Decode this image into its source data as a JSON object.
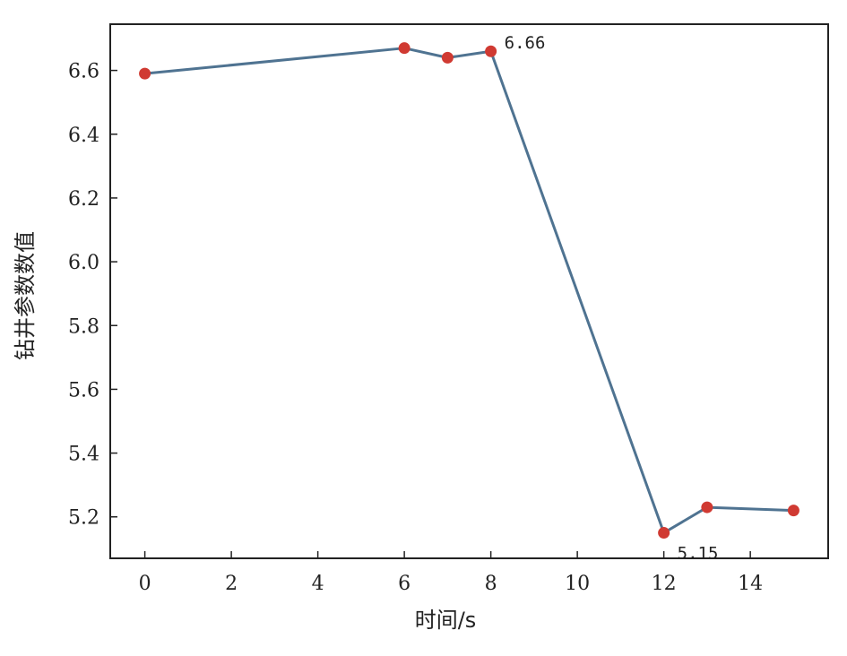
{
  "chart_data": {
    "type": "line",
    "title": "",
    "xlabel": "时间/s",
    "ylabel": "钻井参数数值",
    "xlim": [
      -0.8,
      15.8
    ],
    "ylim": [
      5.07,
      6.745
    ],
    "x_ticks": [
      0,
      2,
      4,
      6,
      8,
      10,
      12,
      14
    ],
    "y_ticks": [
      5.2,
      5.4,
      5.6,
      5.8,
      6.0,
      6.2,
      6.4,
      6.6
    ],
    "x_tick_labels": [
      "0",
      "2",
      "4",
      "6",
      "8",
      "10",
      "12",
      "14"
    ],
    "y_tick_labels": [
      "5.2",
      "5.4",
      "5.6",
      "5.8",
      "6.0",
      "6.2",
      "6.4",
      "6.6"
    ],
    "grid": false,
    "series": [
      {
        "x": [
          0,
          6,
          7,
          8,
          12,
          13,
          15
        ],
        "y": [
          6.59,
          6.67,
          6.64,
          6.66,
          5.15,
          5.23,
          5.22
        ],
        "line_color": "#4f7391",
        "marker_color": "#d03a32"
      }
    ],
    "annotations": [
      {
        "x": 8,
        "y": 6.66,
        "text": "6.66"
      },
      {
        "x": 12,
        "y": 5.15,
        "text": "5.15"
      }
    ]
  }
}
